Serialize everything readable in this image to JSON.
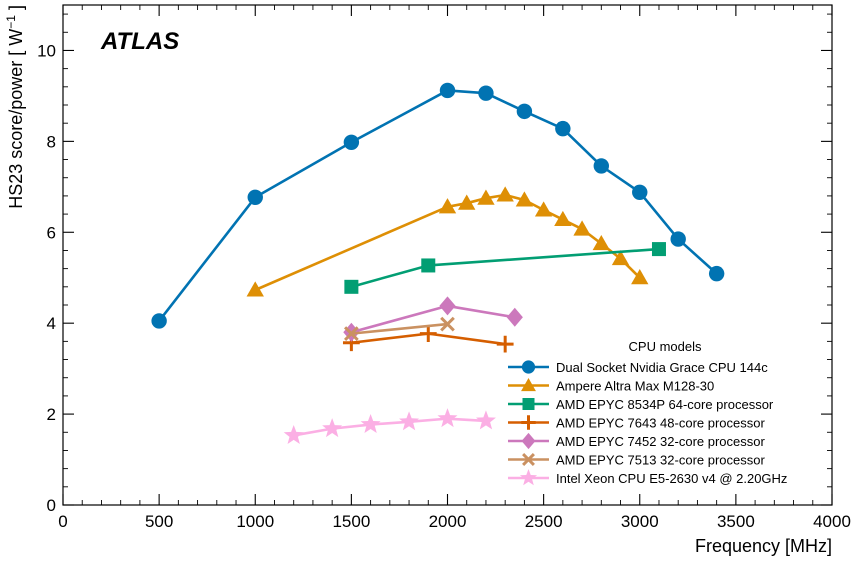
{
  "chart_data": {
    "type": "line",
    "experiment_label": "ATLAS",
    "xlabel": "Frequency [MHz]",
    "ylabel": "HS23 score/power [ W",
    "ylabel_sup": "−1",
    "ylabel_end": " ]",
    "xlim": [
      0,
      4000
    ],
    "ylim": [
      0,
      11
    ],
    "xticks": [
      "0",
      "500",
      "1000",
      "1500",
      "2000",
      "2500",
      "3000",
      "3500",
      "4000"
    ],
    "yticks": [
      "0",
      "2",
      "4",
      "6",
      "8",
      "10"
    ],
    "grid": false,
    "legend_title": "CPU models",
    "legend_placement": "lower-right",
    "series": [
      {
        "name": "Dual Socket Nvidia Grace CPU 144c",
        "color": "#0173b2",
        "marker": "circle",
        "x": [
          500,
          1000,
          1500,
          2000,
          2200,
          2400,
          2600,
          2800,
          3000,
          3200,
          3400
        ],
        "y": [
          4.05,
          6.77,
          7.98,
          9.12,
          9.06,
          8.66,
          8.28,
          7.46,
          6.88,
          5.85,
          5.09
        ]
      },
      {
        "name": "Ampere Altra Max M128-30",
        "color": "#de8f05",
        "marker": "triangle",
        "x": [
          1000,
          2000,
          2100,
          2200,
          2300,
          2400,
          2500,
          2600,
          2700,
          2800,
          2900,
          3000
        ],
        "y": [
          4.73,
          6.56,
          6.64,
          6.75,
          6.82,
          6.71,
          6.49,
          6.28,
          6.07,
          5.75,
          5.42,
          5.0
        ]
      },
      {
        "name": "AMD EPYC 8534P 64-core processor",
        "color": "#029e73",
        "marker": "square",
        "x": [
          1500,
          1900,
          3100
        ],
        "y": [
          4.8,
          5.27,
          5.63
        ]
      },
      {
        "name": "AMD EPYC 7643 48-core processor",
        "color": "#d55e00",
        "marker": "plus",
        "x": [
          1500,
          1900,
          2300
        ],
        "y": [
          3.57,
          3.77,
          3.54
        ]
      },
      {
        "name": "AMD EPYC 7452 32-core processor",
        "color": "#cc78bc",
        "marker": "diamond",
        "x": [
          1500,
          2000,
          2350
        ],
        "y": [
          3.8,
          4.38,
          4.13
        ]
      },
      {
        "name": "AMD EPYC 7513 32-core processor",
        "color": "#ca9161",
        "marker": "x",
        "x": [
          1500,
          2000
        ],
        "y": [
          3.77,
          3.98
        ]
      },
      {
        "name": "Intel Xeon CPU E5-2630 v4 @ 2.20GHz",
        "color": "#fbafe4",
        "marker": "star",
        "x": [
          1200,
          1400,
          1600,
          1800,
          2000,
          2200
        ],
        "y": [
          1.53,
          1.68,
          1.77,
          1.83,
          1.9,
          1.85
        ]
      }
    ]
  }
}
